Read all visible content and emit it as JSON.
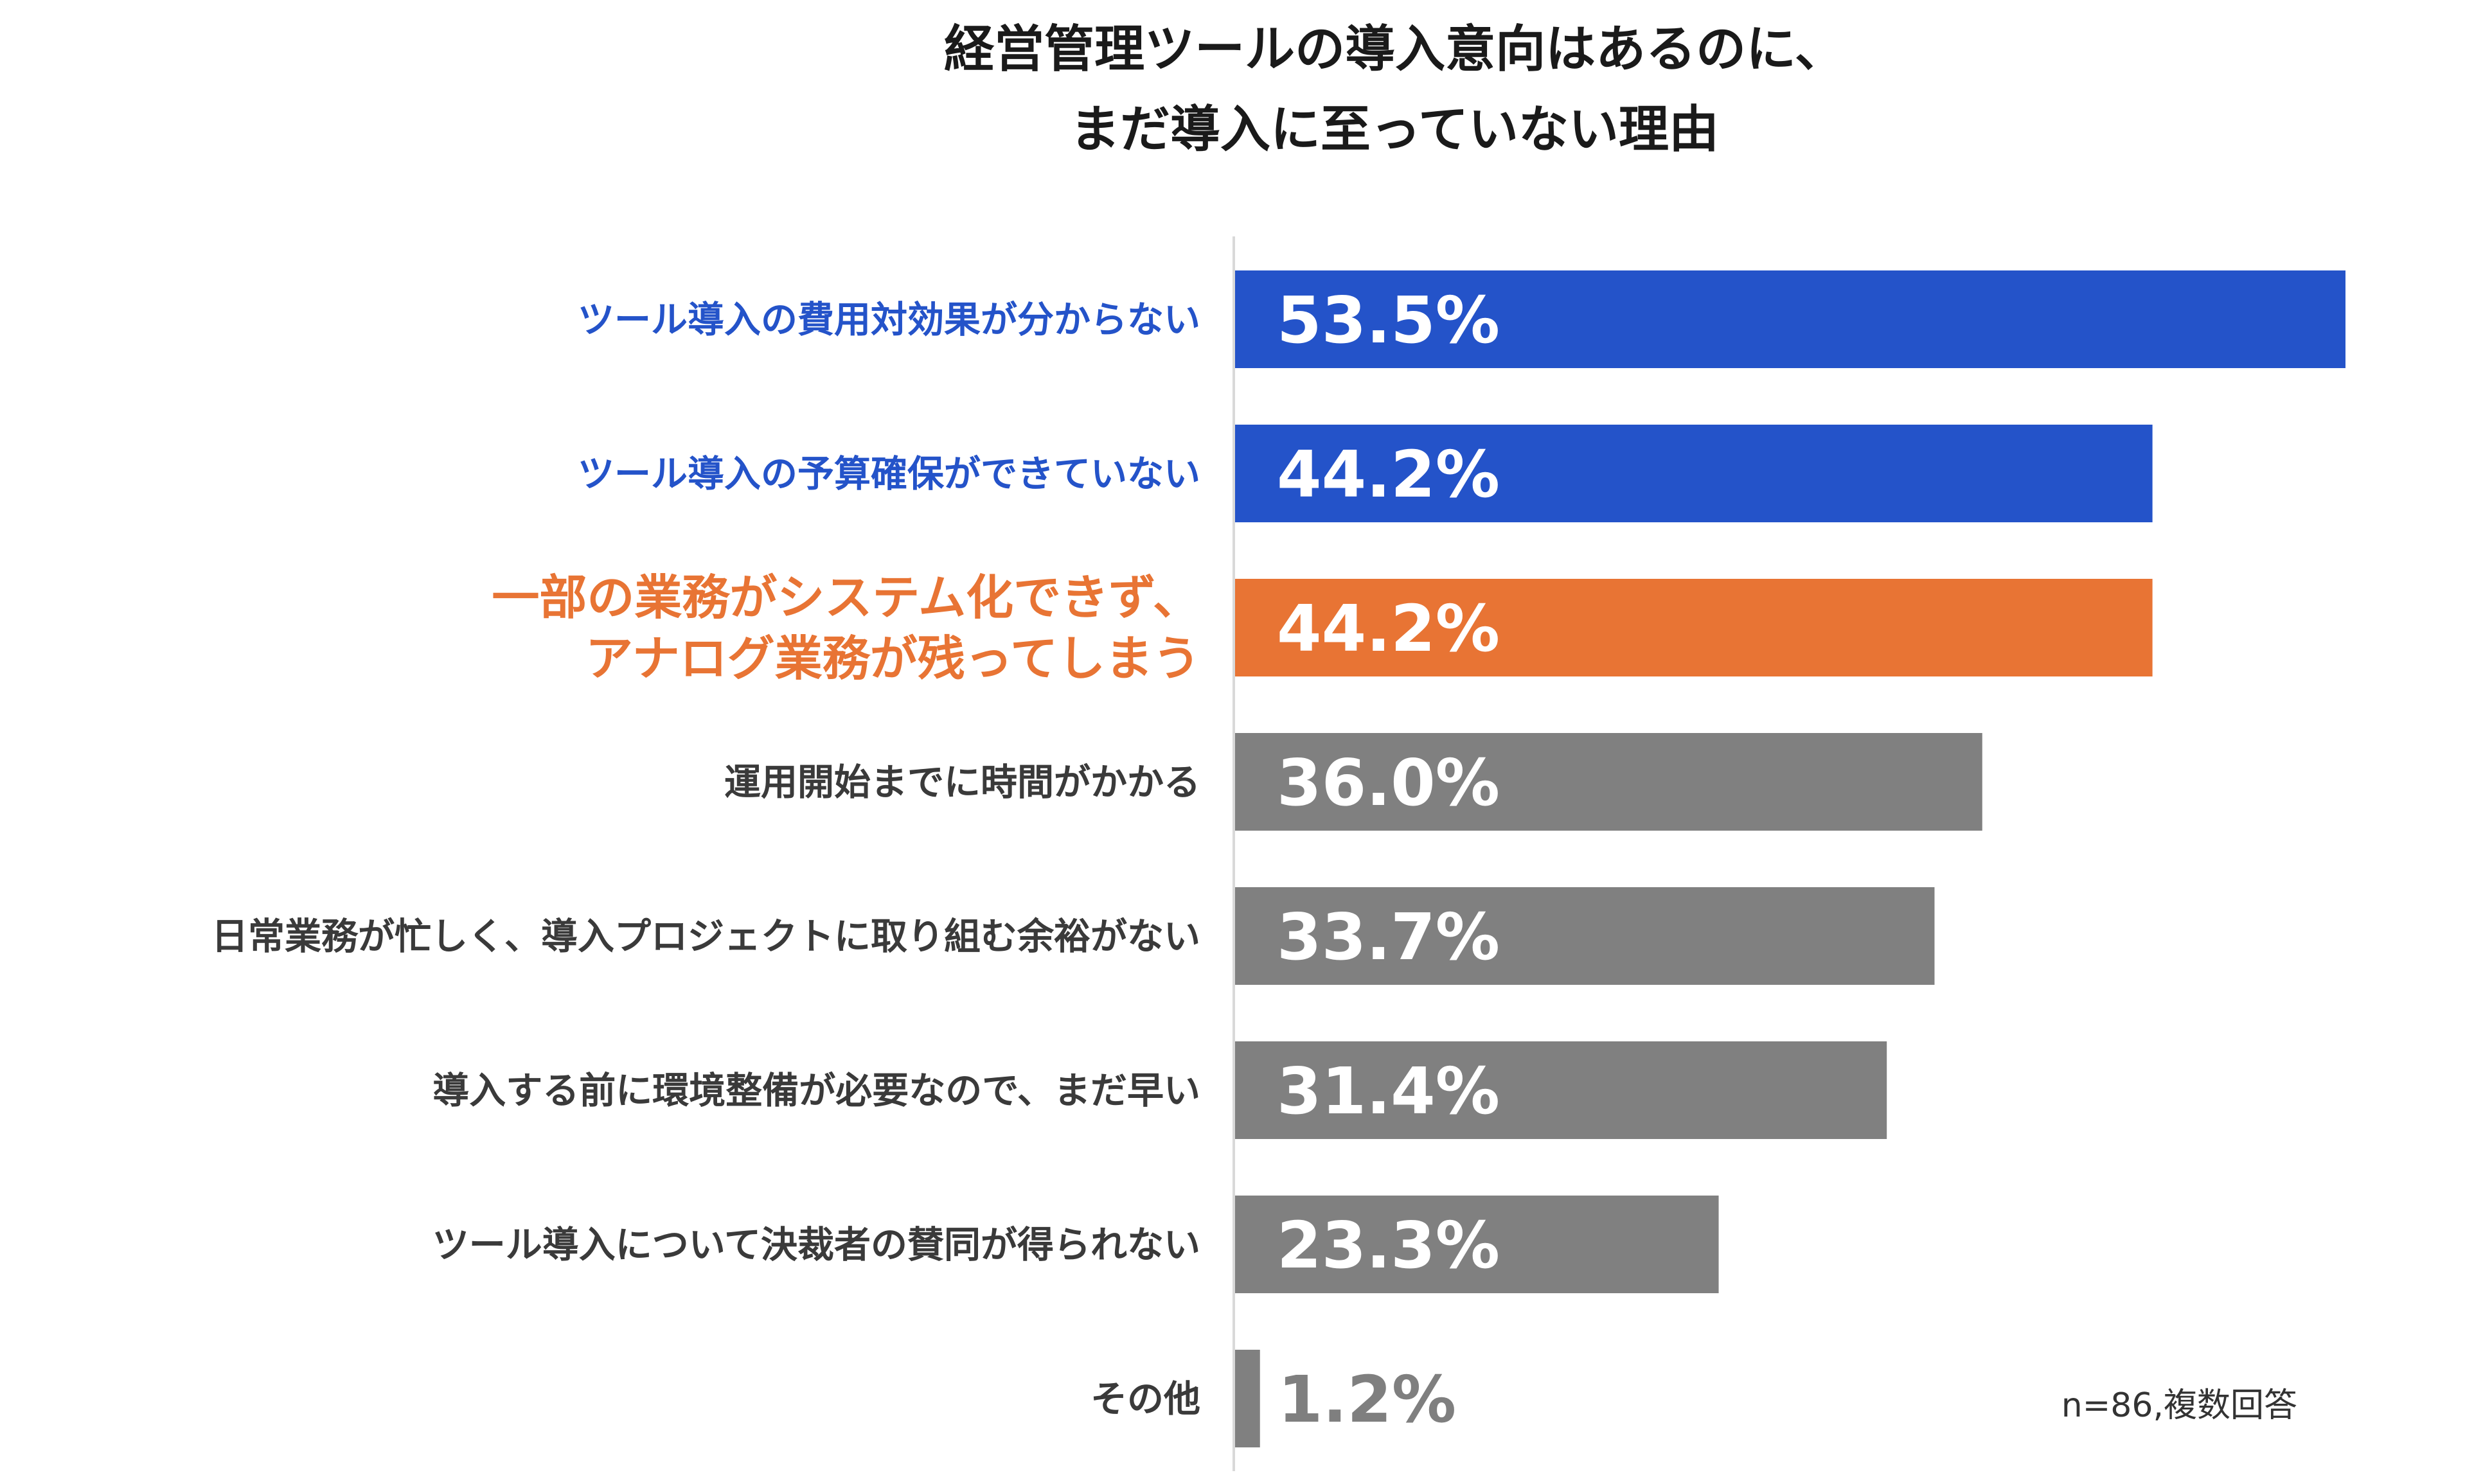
{
  "chart_data": {
    "type": "bar",
    "orientation": "horizontal",
    "title_lines": [
      "経営管理ツールの導入意向はあるのに、",
      "まだ導入に至っていない理由"
    ],
    "categories": [
      [
        "ツール導入の費用対効果が分からない"
      ],
      [
        "ツール導入の予算確保ができていない"
      ],
      [
        "一部の業務がシステム化できず、",
        "アナログ業務が残ってしまう"
      ],
      [
        "運用開始までに時間がかかる"
      ],
      [
        "日常業務が忙しく、導入プロジェクトに取り組む余裕がない"
      ],
      [
        "導入する前に環境整備が必要なので、まだ早い"
      ],
      [
        "ツール導入について決裁者の賛同が得られない"
      ],
      [
        "その他"
      ]
    ],
    "values": [
      53.5,
      44.2,
      44.2,
      36.0,
      33.7,
      31.4,
      23.3,
      1.2
    ],
    "value_labels": [
      "53.5%",
      "44.2%",
      "44.2%",
      "36.0%",
      "33.7%",
      "31.4%",
      "23.3%",
      "1.2%"
    ],
    "bar_colors": [
      "#2453c9",
      "#2453c9",
      "#e87434",
      "#808080",
      "#808080",
      "#808080",
      "#808080",
      "#808080"
    ],
    "label_colors": [
      "#2453c9",
      "#2453c9",
      "#e87434",
      "#3a3a3a",
      "#3a3a3a",
      "#3a3a3a",
      "#3a3a3a",
      "#3a3a3a"
    ],
    "note": "n=86,複数回答",
    "xlim": [
      0,
      53.5
    ],
    "grid": false
  }
}
